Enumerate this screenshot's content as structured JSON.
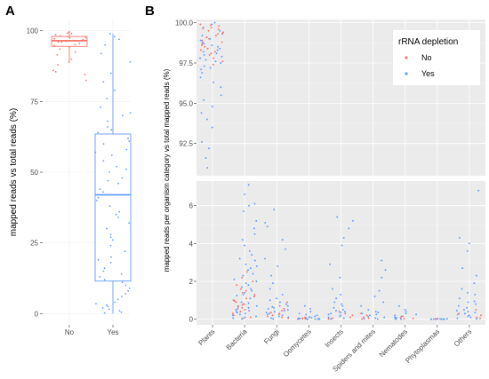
{
  "chart_data": [
    {
      "panel": "A",
      "type": "box",
      "categories": [
        "No",
        "Yes"
      ],
      "ylabel": "mapped reads vs total reads (%)",
      "xlabel": "",
      "ylim": [
        0,
        100
      ],
      "yticks": [
        0,
        25,
        50,
        75,
        100
      ],
      "series": [
        {
          "name": "No",
          "color": "#F8766D",
          "min": 89,
          "q1": 94.5,
          "median": 96.5,
          "q3": 98,
          "max": 100,
          "points": [
            99.5,
            99,
            98.6,
            98.2,
            97.9,
            97.5,
            97.2,
            96.9,
            96.6,
            96.3,
            96,
            95.6,
            95.2,
            94.8,
            94.3,
            93.5,
            92.5,
            91.5,
            90,
            89,
            88,
            86,
            84.5,
            82.5,
            85.5,
            99.2,
            97.7,
            96.1
          ]
        },
        {
          "name": "Yes",
          "color": "#619CFF",
          "min": 0,
          "q1": 11.5,
          "median": 42,
          "q3": 63.5,
          "max": 99,
          "points": [
            99,
            98,
            97,
            95,
            92,
            89,
            85,
            82,
            79,
            76,
            73,
            70,
            68,
            66,
            64,
            62,
            60,
            58,
            56,
            54,
            52,
            50,
            48,
            46,
            44,
            43,
            42,
            41,
            40,
            38,
            36,
            34,
            32,
            30,
            28,
            26,
            24,
            22,
            20,
            18,
            16,
            15,
            14,
            13,
            12,
            11,
            10,
            9,
            8,
            7,
            6,
            5,
            4,
            3.5,
            3,
            2.5,
            2,
            1.5,
            1,
            0.5,
            0.2,
            61,
            57,
            47,
            35,
            27,
            19,
            71,
            65,
            51
          ]
        }
      ]
    },
    {
      "panel": "B",
      "type": "scatter",
      "ylabel": "mapped reads per organism category vs total mapped reads (%)",
      "xlabel": "",
      "categories": [
        "Plants",
        "Bacteria",
        "Fungi",
        "Oomycetes",
        "Insects",
        "Spiders and mites",
        "Nematodes",
        "Phytoplasmas",
        "Others"
      ],
      "facets": [
        {
          "ylim": [
            90.5,
            100.2
          ],
          "yticks": [
            92.5,
            95.0,
            97.5,
            100.0
          ],
          "ytick_labels": [
            "92.5",
            "95.0",
            "97.5",
            "100.0"
          ]
        },
        {
          "ylim": [
            -0.3,
            7.3
          ],
          "yticks": [
            0,
            2,
            4,
            6
          ],
          "ytick_labels": [
            "0",
            "2",
            "4",
            "6"
          ]
        }
      ],
      "legend": {
        "title": "rRNA depletion",
        "entries": [
          {
            "label": "No",
            "color": "#F8766D"
          },
          {
            "label": "Yes",
            "color": "#619CFF"
          }
        ],
        "position": "top-right"
      },
      "groups": [
        {
          "category": "Plants",
          "facet": 0,
          "no": [
            99.9,
            99.8,
            99.7,
            99.6,
            99.5,
            99.4,
            99.3,
            99.2,
            99.1,
            99,
            98.9,
            98.8,
            98.7,
            98.6,
            98.5,
            98.4,
            98.3,
            98.2,
            98.1,
            98,
            97.8,
            97.6,
            97.4,
            99.85,
            99.65,
            99.35
          ],
          "yes": [
            100,
            99.9,
            99.7,
            99.5,
            99.3,
            99.1,
            98.9,
            98.7,
            98.5,
            98.3,
            98.1,
            97.9,
            97.7,
            97.5,
            97.3,
            97.1,
            96.9,
            96.6,
            96.3,
            96,
            95.5,
            95.2,
            94.8,
            94.4,
            94,
            93.5,
            92.6,
            92.2,
            91.6,
            91,
            98.4,
            98.2,
            98,
            97.8,
            97.6,
            99.2,
            99,
            98.8,
            98.6,
            97.2
          ]
        },
        {
          "category": "Bacteria",
          "facet": 1,
          "no": [
            2.5,
            2.2,
            2,
            1.8,
            1.6,
            1.4,
            1.2,
            1.1,
            1,
            0.9,
            0.8,
            0.7,
            0.6,
            0.5,
            0.4,
            0.3,
            0.2,
            0.1,
            0.05,
            1.5,
            1.3,
            0.95,
            0.75,
            0.55
          ],
          "yes": [
            7.1,
            6.6,
            6.1,
            6,
            5.7,
            5.2,
            4.8,
            4.2,
            3.9,
            3.6,
            3.4,
            3.1,
            2.9,
            2.8,
            2.6,
            2.4,
            2.3,
            2.1,
            2,
            1.9,
            1.8,
            1.7,
            1.6,
            1.5,
            1.4,
            1.3,
            1.2,
            1.1,
            1,
            0.9,
            0.8,
            0.7,
            0.6,
            0.5,
            0.45,
            0.4,
            0.35,
            0.3,
            0.25,
            0.2,
            0.15,
            0.1,
            0.05,
            0.02,
            1.25,
            0.85,
            0.65,
            2.7,
            3.2,
            4.5
          ]
        },
        {
          "category": "Fungi",
          "facet": 1,
          "no": [
            0.9,
            0.7,
            0.55,
            0.45,
            0.35,
            0.25,
            0.15,
            0.1,
            0.05,
            0.3,
            0.2
          ],
          "yes": [
            5.8,
            5.1,
            4.9,
            4.2,
            3.7,
            3.2,
            2.8,
            2.3,
            1.9,
            1.6,
            1.3,
            1.1,
            1,
            0.9,
            0.8,
            0.7,
            0.6,
            0.5,
            0.45,
            0.4,
            0.35,
            0.3,
            0.25,
            0.2,
            0.15,
            0.1,
            0.05,
            0.02,
            0.65,
            0.55
          ]
        },
        {
          "category": "Oomycetes",
          "facet": 1,
          "no": [
            0.1,
            0.05,
            0.02,
            0.01,
            0.03
          ],
          "yes": [
            0.7,
            0.55,
            0.4,
            0.3,
            0.25,
            0.2,
            0.15,
            0.12,
            0.1,
            0.08,
            0.06,
            0.05,
            0.04,
            0.03,
            0.02,
            0.01,
            0,
            0,
            0,
            0,
            0.01,
            0.02
          ]
        },
        {
          "category": "Insects",
          "facet": 1,
          "no": [
            0.4,
            0.3,
            0.2,
            0.1,
            0.05,
            0.02
          ],
          "yes": [
            5.4,
            5.2,
            4.8,
            4.3,
            3.9,
            2.9,
            2.2,
            1.6,
            1.3,
            1.1,
            0.9,
            0.8,
            0.7,
            0.6,
            0.5,
            0.4,
            0.35,
            0.3,
            0.25,
            0.2,
            0.15,
            0.1,
            0.05,
            0.02,
            0.01,
            0.45
          ]
        },
        {
          "category": "Spiders and mites",
          "facet": 1,
          "no": [
            0.3,
            0.2,
            0.1,
            0.05,
            0.02
          ],
          "yes": [
            3.1,
            2.6,
            2.2,
            1.5,
            1.2,
            0.9,
            0.7,
            0.5,
            0.4,
            0.3,
            0.25,
            0.2,
            0.15,
            0.1,
            0.05,
            0.02,
            0.01,
            0.35
          ]
        },
        {
          "category": "Nematodes",
          "facet": 1,
          "no": [
            0.15,
            0.08,
            0.04,
            0.02
          ],
          "yes": [
            0.7,
            0.5,
            0.4,
            0.3,
            0.25,
            0.2,
            0.15,
            0.1,
            0.08,
            0.05,
            0.03,
            0.02,
            0.01,
            0
          ]
        },
        {
          "category": "Phytoplasmas",
          "facet": 1,
          "no": [
            0.02,
            0.01
          ],
          "yes": [
            0.03,
            0.02,
            0.01,
            0,
            0,
            0,
            0,
            0,
            0,
            0.01
          ]
        },
        {
          "category": "Others",
          "facet": 1,
          "no": [
            0.5,
            0.3,
            0.2,
            0.1,
            0.05
          ],
          "yes": [
            6.8,
            4.3,
            4,
            3.6,
            2.7,
            2.3,
            1.9,
            1.6,
            1.3,
            1.1,
            0.9,
            0.8,
            0.7,
            0.6,
            0.5,
            0.45,
            0.4,
            0.35,
            0.3,
            0.25,
            0.2,
            0.15,
            0.1,
            0.05,
            0.02,
            1.4,
            0.95
          ]
        }
      ]
    }
  ]
}
